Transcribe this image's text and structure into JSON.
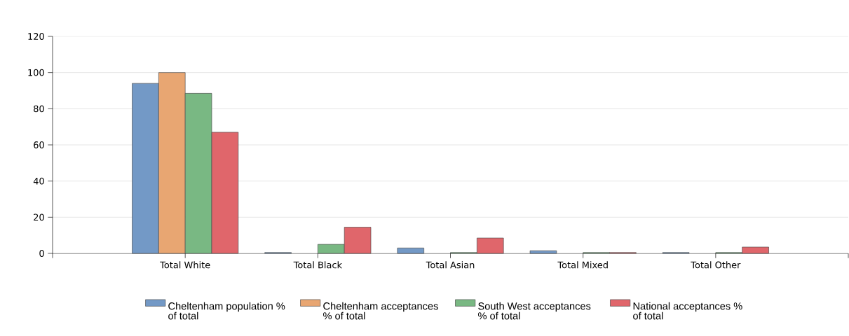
{
  "chart_data": {
    "type": "bar",
    "categories": [
      "Total White",
      "Total Black",
      "Total Asian",
      "Total Mixed",
      "Total Other"
    ],
    "series": [
      {
        "name": "Cheltenham population % of total",
        "color": "#7399c6",
        "values": [
          94,
          0.5,
          3,
          1.5,
          0.5
        ]
      },
      {
        "name": "Cheltenham acceptances % of total",
        "color": "#e8a672",
        "values": [
          100,
          null,
          null,
          null,
          null
        ]
      },
      {
        "name": "South West acceptances % of total",
        "color": "#79b883",
        "values": [
          88.5,
          5,
          0.5,
          0.5,
          0.5
        ]
      },
      {
        "name": "National acceptances % of total",
        "color": "#e0666b",
        "values": [
          67,
          14.5,
          8.5,
          0.5,
          3.5
        ]
      }
    ],
    "ylim": [
      0,
      120
    ],
    "yticks": [
      0,
      20,
      40,
      60,
      80,
      100,
      120
    ],
    "grid": "y",
    "legend": "bottom"
  }
}
